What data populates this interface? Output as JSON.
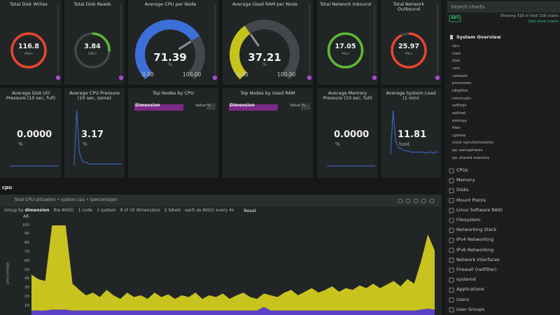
{
  "rings": [
    {
      "title": "Total Disk Writes",
      "value": 116.8,
      "unit": "MiB/s",
      "color": "#e8452c"
    },
    {
      "title": "Total Disk Reads",
      "value": 3.84,
      "unit": "MiB/s",
      "color": "#5fb832"
    },
    {
      "title": "Total Network Inbound",
      "value": 17.05,
      "unit": "Mb/s",
      "color": "#5fb832"
    },
    {
      "title": "Total Network Outbound",
      "value": 25.97,
      "unit": "Mb/s",
      "color": "#e8452c"
    }
  ],
  "gauges": [
    {
      "title": "Average CPU per Node",
      "value": 71.39,
      "unit": "%",
      "min": {
        "value": 0,
        "label": "0.00"
      },
      "max": {
        "value": 100,
        "label": "100.00"
      },
      "color": "#3d6fd8"
    },
    {
      "title": "Average Used RAM per Node",
      "value": 37.21,
      "unit": "%",
      "min": {
        "value": 0,
        "label": "0.00"
      },
      "max": {
        "value": 100,
        "label": "100.00"
      },
      "color": "#c4c41c"
    }
  ],
  "pressure": [
    {
      "title": "Average Disk I/O Pressure (10 sec, full)",
      "value": {
        "value": 0,
        "label": "0.0000"
      },
      "unit": "%",
      "values": [
        0,
        0,
        0,
        0,
        0,
        0,
        0,
        0,
        0,
        0,
        0,
        0,
        0,
        0,
        0,
        0,
        0,
        0,
        0,
        0
      ]
    },
    {
      "title": "Average CPU Pressure (10 sec, some)",
      "value": 3.17,
      "unit": "%",
      "values": [
        0,
        30,
        8,
        3,
        2,
        2,
        1,
        1,
        1,
        1,
        1,
        1,
        1,
        1,
        1,
        1,
        1,
        1,
        1,
        1
      ]
    },
    {
      "title": "Average Memory Pressure (10 sec, full)",
      "value": {
        "value": 0,
        "label": "0.0000"
      },
      "unit": "%",
      "values": [
        0,
        0,
        0,
        0,
        0,
        0,
        0,
        0,
        0,
        0,
        0,
        0,
        0,
        0,
        0,
        0,
        0,
        0,
        0,
        0
      ]
    },
    {
      "title": "Average System Load (1 min)",
      "value": 11.81,
      "unit": "load",
      "values": [
        10,
        48,
        22,
        16,
        15,
        14,
        13,
        13,
        12,
        12,
        12,
        12,
        12,
        12,
        11,
        12,
        12,
        11,
        12,
        12
      ]
    }
  ],
  "top_nodes": [
    {
      "title": "Top Nodes by CPU",
      "columns": [
        "Dimension",
        "Value %"
      ]
    },
    {
      "title": "Top Nodes by Used RAM",
      "columns": [
        "Dimension",
        "Value %"
      ]
    }
  ],
  "section": "cpu",
  "chart_data": {
    "type": "area",
    "stacked": true,
    "title": "Total CPU utilization • system.cpu • (percentage)",
    "controls": [
      "Group by",
      "dimension",
      "the AVG()",
      "1 node",
      "1 system",
      "9 of 10 dimensions",
      "2 labels",
      "each as AVG() every 4s",
      "Reset"
    ],
    "unit_label": "AR",
    "ylabel": "percentage",
    "ylim": [
      0,
      100
    ],
    "yticks": [
      10,
      20,
      30,
      40,
      50,
      60,
      70,
      80,
      90,
      100
    ],
    "grid": true,
    "series": [
      {
        "color": "#5b3fc6",
        "values": [
          5,
          5,
          5,
          6,
          6,
          6,
          5,
          5,
          5,
          5,
          5,
          5,
          5,
          5,
          5,
          5,
          5,
          5,
          5,
          5,
          5,
          5,
          5,
          5,
          5,
          5,
          5,
          5,
          5,
          5,
          5,
          5,
          5,
          5,
          9,
          5,
          5,
          5,
          5,
          5,
          5,
          5,
          5,
          5,
          5,
          5,
          5,
          5,
          5,
          5,
          5,
          5,
          5,
          5,
          5,
          5,
          5,
          6,
          7,
          6
        ]
      },
      {
        "color": "#c9c31f",
        "values": [
          40,
          35,
          33,
          94,
          94,
          94,
          30,
          23,
          17,
          20,
          15,
          23,
          17,
          13,
          20,
          15,
          17,
          13,
          20,
          15,
          18,
          13,
          17,
          15,
          20,
          13,
          17,
          15,
          19,
          13,
          17,
          20,
          15,
          13,
          15,
          17,
          15,
          20,
          23,
          17,
          21,
          25,
          20,
          23,
          27,
          21,
          25,
          23,
          28,
          25,
          30,
          25,
          29,
          33,
          27,
          35,
          30,
          54,
          83,
          66
        ]
      }
    ]
  },
  "sidebar": {
    "search": "Search charts",
    "badge": "AR%",
    "showing": "Showing 318 of total 318 charts",
    "add": "Add more charts",
    "overview": "System Overview",
    "overview_items": [
      "cpu",
      "load",
      "disk",
      "ram",
      "network",
      "processes",
      "idlejitter",
      "interrupts",
      "softirqs",
      "softnet",
      "entropy",
      "files",
      "uptime",
      "clock synchronization",
      "ipc semaphores",
      "ipc shared memory"
    ],
    "sections": [
      "CPUs",
      "Memory",
      "Disks",
      "Mount Points",
      "Linux Software RAID",
      "Filesystem",
      "Networking Stack",
      "IPv4 Networking",
      "IPv6 Networking",
      "Network Interfaces",
      "Firewall (netfilter)",
      "systemd",
      "Applications",
      "Users",
      "User Groups"
    ]
  }
}
